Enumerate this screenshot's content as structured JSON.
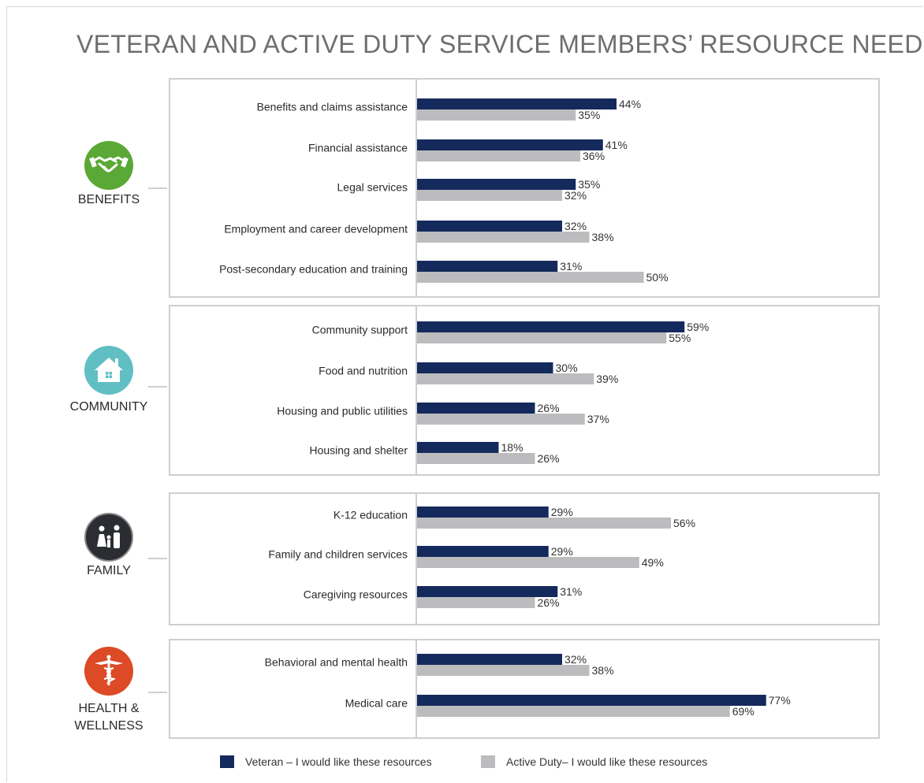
{
  "title": "VETERAN AND ACTIVE DUTY SERVICE MEMBERS’ RESOURCE NEEDS",
  "colors": {
    "veteran": "#152a5c",
    "active_duty": "#bcbcbe",
    "benefits": "#5aa835",
    "community": "#5fbfc3",
    "family": "#2b2d33",
    "health": "#dd4a26"
  },
  "categories": [
    {
      "label": "BENEFITS",
      "icon": "handshake-icon"
    },
    {
      "label": "COMMUNITY",
      "icon": "house-icon"
    },
    {
      "label": "FAMILY",
      "icon": "family-icon"
    },
    {
      "label": "HEALTH & WELLNESS",
      "icon": "caduceus-icon"
    }
  ],
  "legend": [
    {
      "label": "Veteran – I would like these resources"
    },
    {
      "label": "Active Duty– I would like these resources"
    }
  ],
  "chart_data": {
    "type": "bar",
    "orientation": "horizontal",
    "series": [
      {
        "name": "Veteran – I would like these resources"
      },
      {
        "name": "Active Duty– I would like these resources"
      }
    ],
    "groups": [
      {
        "category": "BENEFITS",
        "items": [
          {
            "label": "Benefits and claims assistance",
            "values": [
              44,
              35
            ]
          },
          {
            "label": "Financial assistance",
            "values": [
              41,
              36
            ]
          },
          {
            "label": "Legal services",
            "values": [
              35,
              32
            ]
          },
          {
            "label": "Employment and career development",
            "values": [
              32,
              38
            ]
          },
          {
            "label": "Post-secondary education and training",
            "values": [
              31,
              50
            ]
          }
        ]
      },
      {
        "category": "COMMUNITY",
        "items": [
          {
            "label": "Community support",
            "values": [
              59,
              55
            ]
          },
          {
            "label": "Food and nutrition",
            "values": [
              30,
              39
            ]
          },
          {
            "label": "Housing and public utilities",
            "values": [
              26,
              37
            ]
          },
          {
            "label": "Housing and shelter",
            "values": [
              18,
              26
            ]
          }
        ]
      },
      {
        "category": "FAMILY",
        "items": [
          {
            "label": "K-12 education",
            "values": [
              29,
              56
            ]
          },
          {
            "label": "Family and children services",
            "values": [
              29,
              49
            ]
          },
          {
            "label": "Caregiving resources",
            "values": [
              31,
              26
            ]
          }
        ]
      },
      {
        "category": "HEALTH & WELLNESS",
        "items": [
          {
            "label": "Behavioral and mental health",
            "values": [
              32,
              38
            ]
          },
          {
            "label": "Medical care",
            "values": [
              77,
              69
            ]
          }
        ]
      }
    ],
    "value_suffix": "%",
    "xlim": [
      0,
      80
    ],
    "grid": false,
    "legend_position": "bottom"
  }
}
